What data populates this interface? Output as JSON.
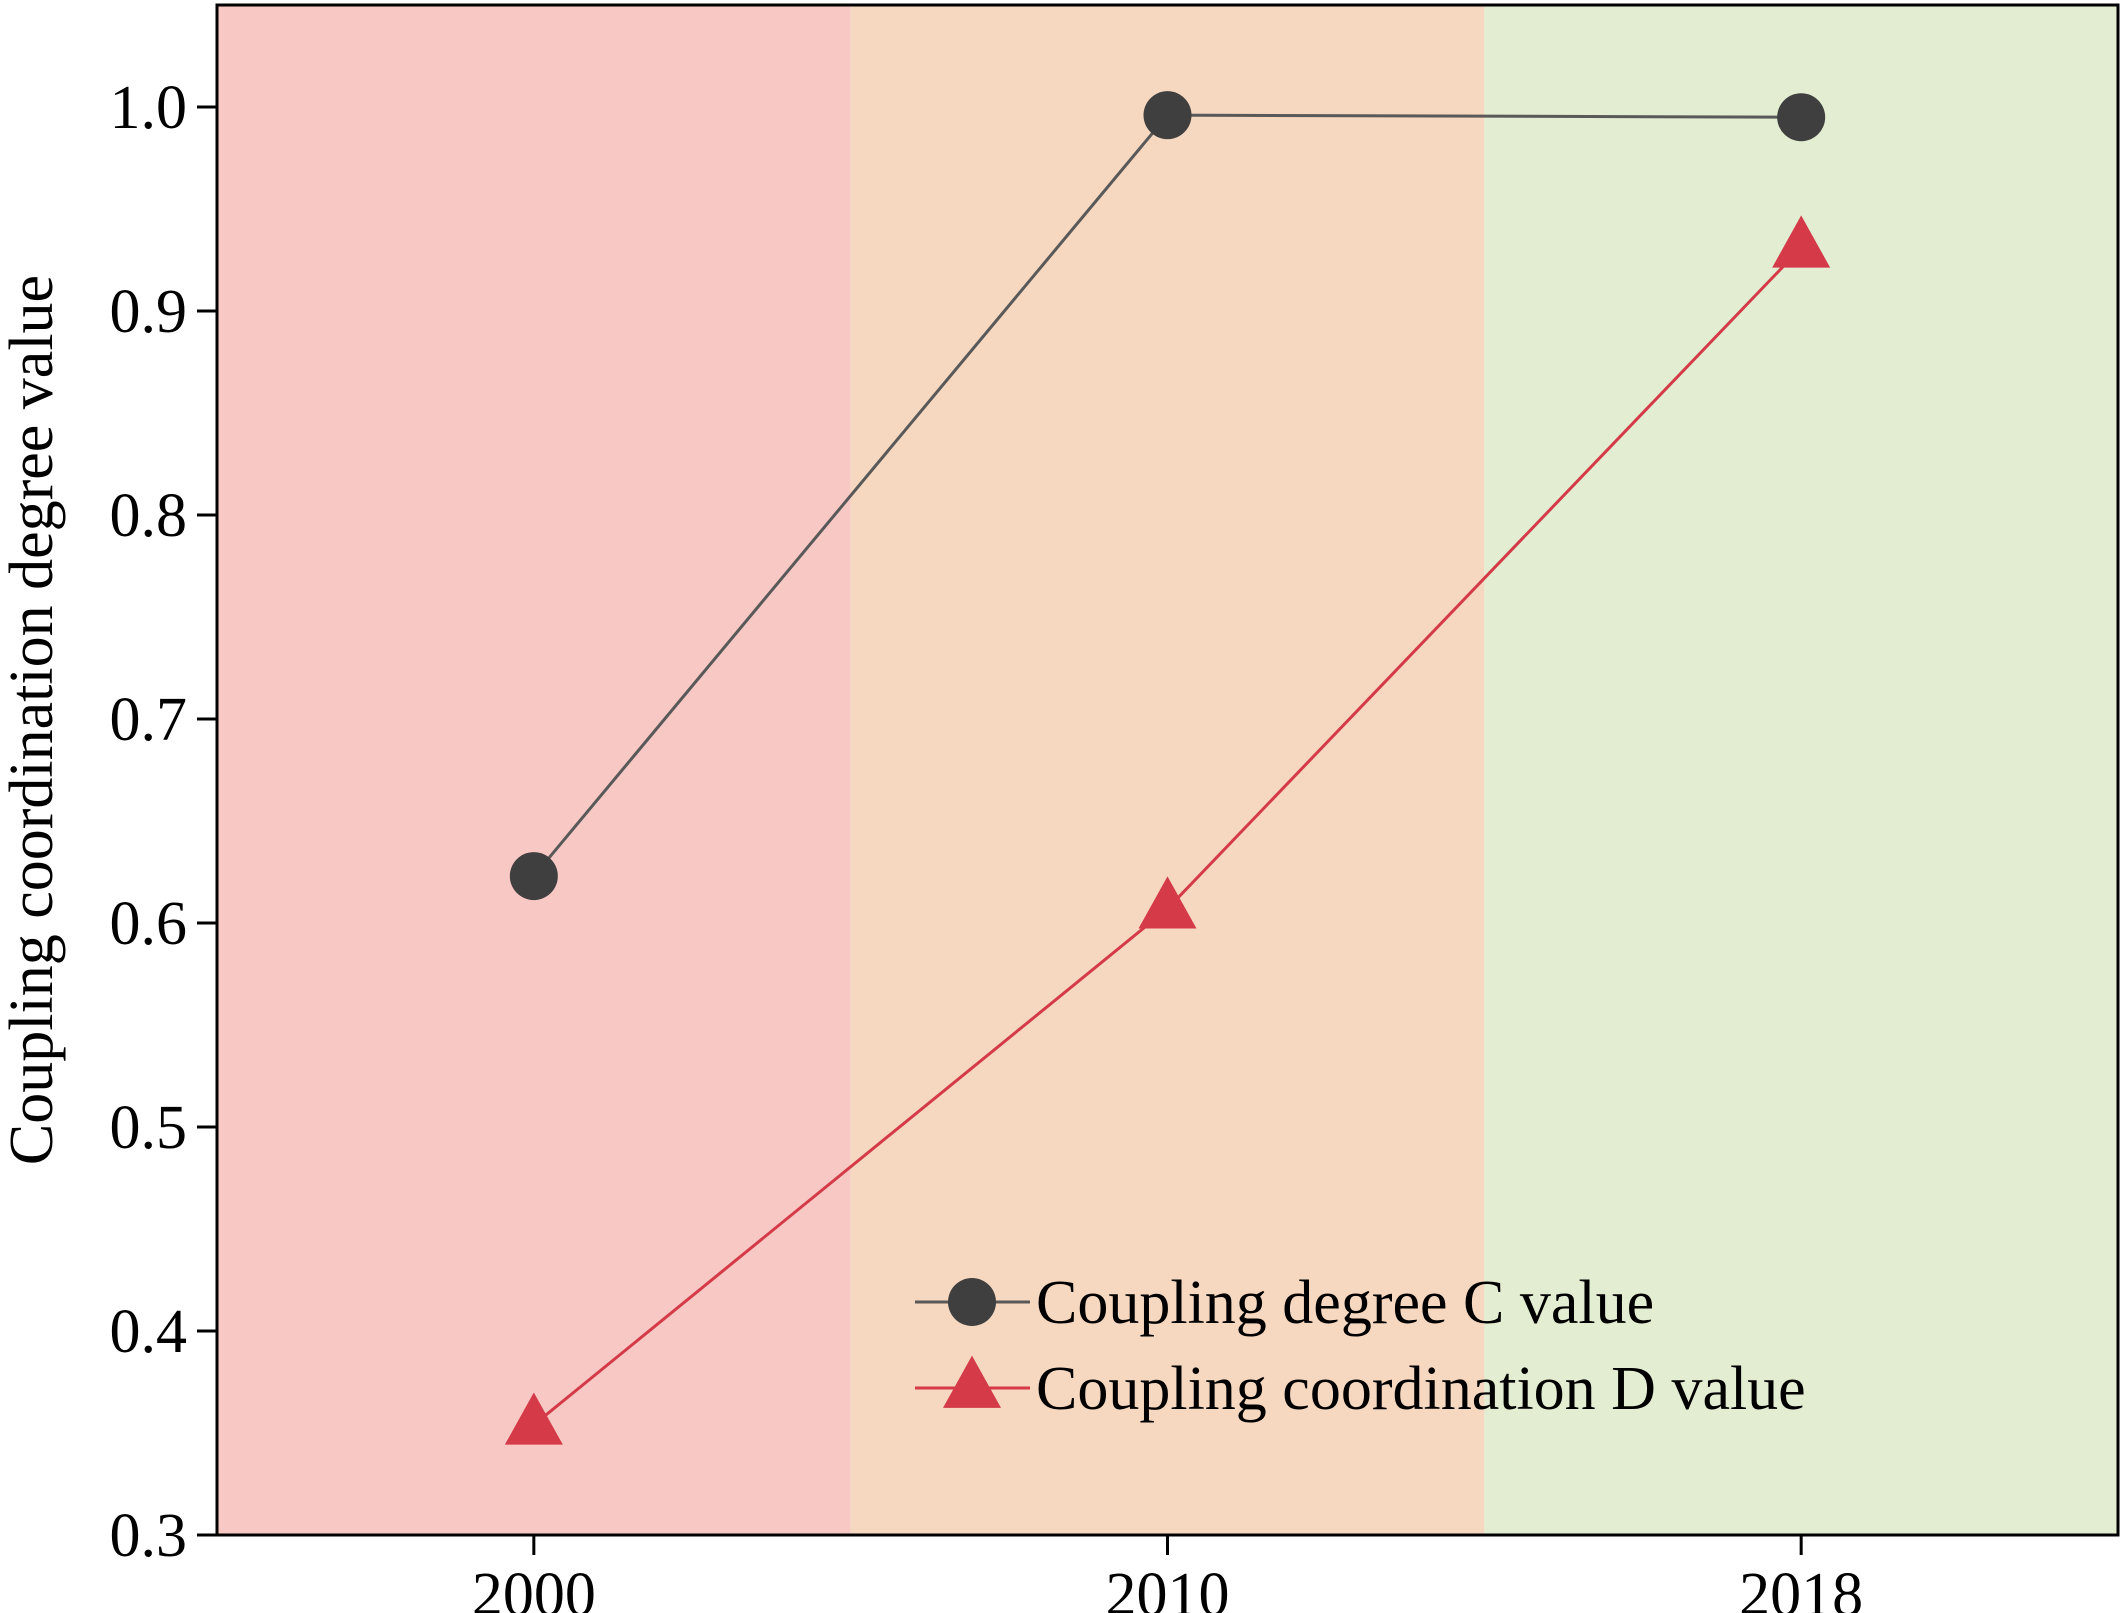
{
  "chart_data": {
    "type": "line",
    "categories": [
      "2000",
      "2010",
      "2018"
    ],
    "ylabel": "Coupling coordination degree value",
    "xlabel": "",
    "ylim": [
      0.3,
      1.05
    ],
    "yticks": [
      "0.3",
      "0.4",
      "0.5",
      "0.6",
      "0.7",
      "0.8",
      "0.9",
      "1.0"
    ],
    "grid": false,
    "legend_position": "bottom-right",
    "background_bands": [
      {
        "from_category": "2000",
        "color": "#f8c8c4"
      },
      {
        "from_category": "2010",
        "color": "#f6d7bf"
      },
      {
        "from_category": "2018",
        "color": "#e2edd1"
      }
    ],
    "series": [
      {
        "name": "Coupling degree C value",
        "values": [
          0.623,
          0.996,
          0.995
        ],
        "marker": "circle",
        "color": "#3f3f3f",
        "line_color": "#595959"
      },
      {
        "name": "Coupling coordination D value",
        "values": [
          0.354,
          0.607,
          0.931
        ],
        "marker": "triangle",
        "color": "#d43a48",
        "line_color": "#d43a48"
      }
    ]
  }
}
